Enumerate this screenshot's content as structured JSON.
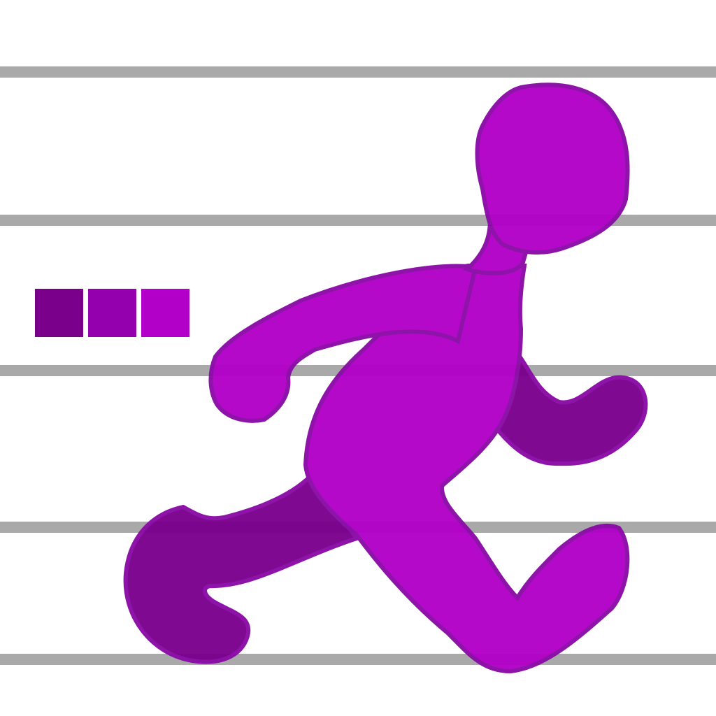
{
  "icon": {
    "name": "running-person-icon",
    "colors": {
      "background": "#ffffff",
      "lines": "#a9a9a9",
      "figure_light": "#b200c8",
      "figure_dark": "#7a008c",
      "outline": "#8a0aa6"
    }
  },
  "swatches": [
    {
      "name": "swatch-dark",
      "color": "#7a008c"
    },
    {
      "name": "swatch-medium",
      "color": "#9500ae"
    },
    {
      "name": "swatch-light",
      "color": "#b200c8"
    }
  ]
}
